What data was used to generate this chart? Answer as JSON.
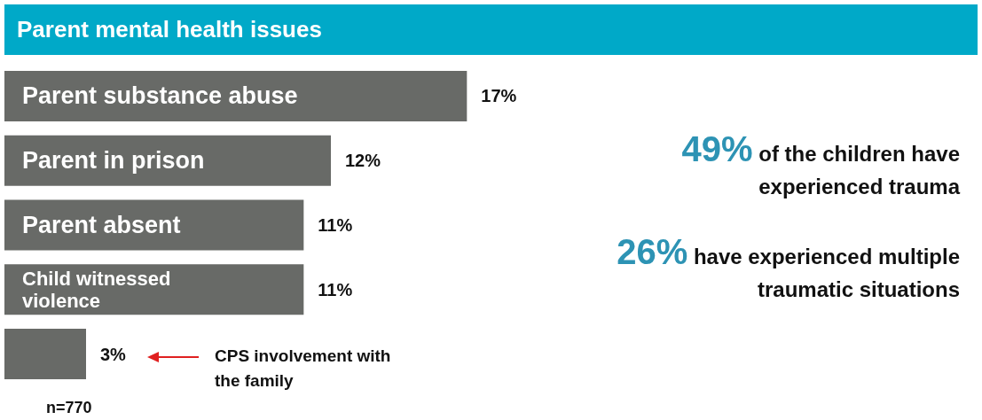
{
  "chart_data": {
    "type": "bar",
    "orientation": "horizontal",
    "title": "Parent mental health issues",
    "categories": [
      "Parent substance abuse",
      "Parent in prison",
      "Parent absent",
      "Child witnessed violence",
      null
    ],
    "values": [
      17,
      12,
      11,
      11,
      3
    ],
    "value_labels": [
      "17%",
      "12%",
      "11%",
      "11%",
      "3%"
    ],
    "color": "#686a67",
    "annotations": [
      "49% of the children have experienced trauma",
      "26% have experienced multiple traumatic situations",
      "CPS involvement with the family",
      "n=770"
    ]
  }
}
